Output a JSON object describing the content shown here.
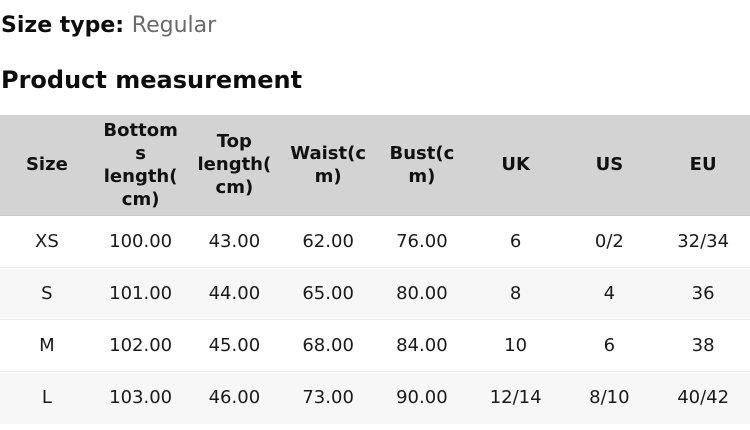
{
  "header": {
    "size_type_label": "Size type:",
    "size_type_value": "Regular",
    "section_title": "Product measurement"
  },
  "table": {
    "columns": [
      "Size",
      "Bottoms length(cm)",
      "Top length(cm)",
      "Waist(cm)",
      "Bust(cm)",
      "UK",
      "US",
      "EU"
    ],
    "rows": [
      [
        "XS",
        "100.00",
        "43.00",
        "62.00",
        "76.00",
        "6",
        "0/2",
        "32/34"
      ],
      [
        "S",
        "101.00",
        "44.00",
        "65.00",
        "80.00",
        "8",
        "4",
        "36"
      ],
      [
        "M",
        "102.00",
        "45.00",
        "68.00",
        "84.00",
        "10",
        "6",
        "38"
      ],
      [
        "L",
        "103.00",
        "46.00",
        "73.00",
        "90.00",
        "12/14",
        "8/10",
        "40/42"
      ]
    ]
  },
  "colors": {
    "header_bg": "#d3d3d3",
    "row_alt_bg": "#f7f7f7",
    "row_border": "#ededed",
    "header_border": "#c9c9c9",
    "text": "#141414",
    "muted_text": "#6a6a6a"
  }
}
